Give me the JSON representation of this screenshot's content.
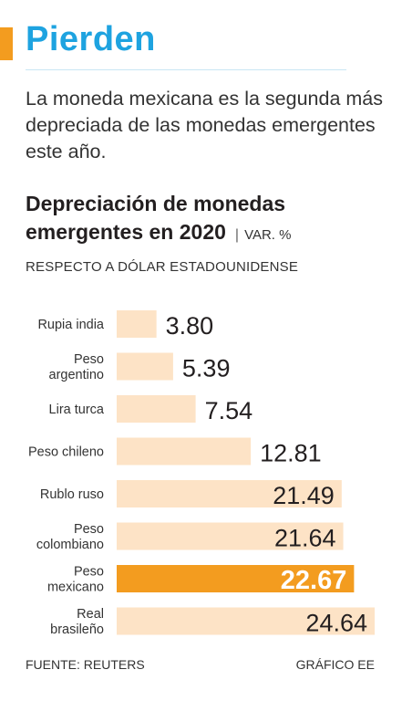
{
  "header": {
    "headline": "Pierden",
    "lede": "La moneda mexicana es la segunda más depreciada de las monedas emergentes este año."
  },
  "chart_data": {
    "type": "bar",
    "title": "Depreciación de monedas emergentes en 2020",
    "unit": "VAR. %",
    "subtitle": "RESPECTO A DÓLAR ESTADOUNIDENSE",
    "categories": [
      [
        "Rupia india"
      ],
      [
        "Peso",
        "argentino"
      ],
      [
        "Lira turca"
      ],
      [
        "Peso chileno"
      ],
      [
        "Rublo ruso"
      ],
      [
        "Peso",
        "colombiano"
      ],
      [
        "Peso",
        "mexicano"
      ],
      [
        "Real",
        "brasileño"
      ]
    ],
    "values": [
      3.8,
      5.39,
      7.54,
      12.81,
      21.49,
      21.64,
      22.67,
      24.64
    ],
    "value_labels": [
      "3.80",
      "5.39",
      "7.54",
      "12.81",
      "21.49",
      "21.64",
      "22.67",
      "24.64"
    ],
    "highlight_index": 6,
    "xlim": [
      0,
      24.64
    ],
    "colors": {
      "bar": "#fde3c6",
      "highlight": "#f39c1f",
      "label": "#231f20",
      "highlight_label": "#ffffff"
    }
  },
  "footer": {
    "source": "FUENTE: REUTERS",
    "credit": "GRÁFICO EE"
  }
}
